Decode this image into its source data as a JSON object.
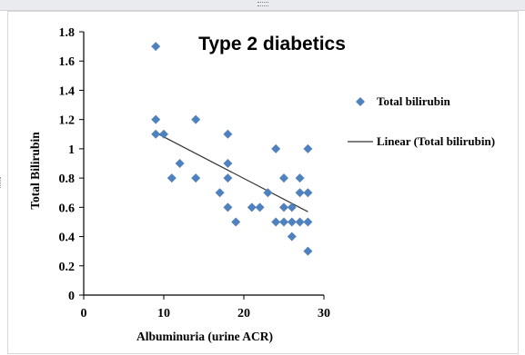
{
  "chart_data": {
    "type": "scatter",
    "title": "Type 2 diabetics",
    "xlabel": "Albuminuria  (urine ACR)",
    "ylabel": "Total Bilirubin",
    "xlim": [
      0,
      30
    ],
    "ylim": [
      0,
      1.8
    ],
    "x_ticks": [
      "0",
      "10",
      "20",
      "30"
    ],
    "y_ticks": [
      "0",
      "0.2",
      "0.4",
      "0.6",
      "0.8",
      "1",
      "1.2",
      "1.4",
      "1.6",
      "1.8"
    ],
    "grid": false,
    "legend_position": "right",
    "series": [
      {
        "name": "Total bilirubin",
        "marker": "diamond",
        "color": "#4f81bd",
        "points": [
          [
            9,
            1.7
          ],
          [
            9,
            1.2
          ],
          [
            9,
            1.1
          ],
          [
            10,
            1.1
          ],
          [
            11,
            0.8
          ],
          [
            12,
            0.9
          ],
          [
            14,
            1.2
          ],
          [
            14,
            0.8
          ],
          [
            17,
            0.7
          ],
          [
            18,
            1.1
          ],
          [
            18,
            0.9
          ],
          [
            18,
            0.8
          ],
          [
            18,
            0.6
          ],
          [
            19,
            0.5
          ],
          [
            21,
            0.6
          ],
          [
            22,
            0.6
          ],
          [
            23,
            0.7
          ],
          [
            24,
            1.0
          ],
          [
            24,
            0.5
          ],
          [
            25,
            0.8
          ],
          [
            25,
            0.6
          ],
          [
            25,
            0.5
          ],
          [
            26,
            0.6
          ],
          [
            26,
            0.5
          ],
          [
            26,
            0.4
          ],
          [
            27,
            0.8
          ],
          [
            27,
            0.7
          ],
          [
            27,
            0.5
          ],
          [
            28,
            1.0
          ],
          [
            28,
            0.7
          ],
          [
            28,
            0.5
          ],
          [
            28,
            0.3
          ]
        ]
      }
    ],
    "trendline": {
      "name": "Linear (Total bilirubin)",
      "type": "linear",
      "color": "#333333",
      "x_range": [
        9,
        28
      ],
      "y_range": [
        1.11,
        0.57
      ]
    }
  }
}
